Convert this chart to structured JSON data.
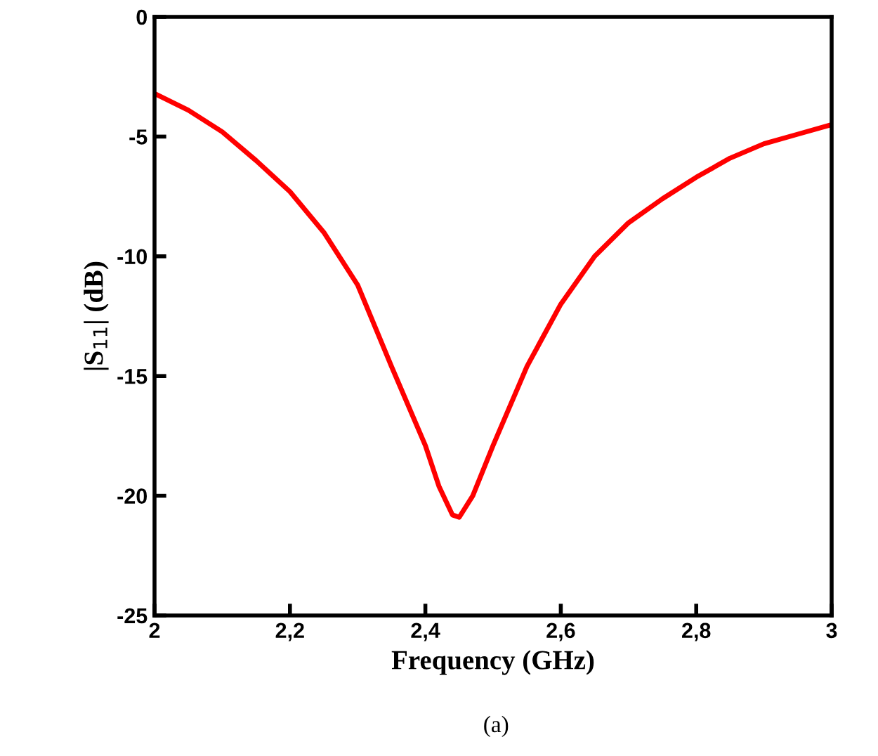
{
  "chart_data": {
    "type": "line",
    "xlabel": "Frequency (GHz)",
    "ylabel": "|S$_{11}$| (dB)",
    "annotations": [
      "(a)"
    ],
    "x": [
      2.0,
      2.05,
      2.1,
      2.15,
      2.2,
      2.25,
      2.3,
      2.35,
      2.4,
      2.42,
      2.44,
      2.45,
      2.47,
      2.5,
      2.55,
      2.6,
      2.65,
      2.7,
      2.75,
      2.8,
      2.85,
      2.9,
      2.95,
      3.0
    ],
    "series": [
      {
        "color": "#ff0000",
        "values": [
          -3.2,
          -3.9,
          -4.8,
          -6.0,
          -7.3,
          -9.0,
          -11.2,
          -14.6,
          -17.9,
          -19.6,
          -20.8,
          -20.9,
          -20.0,
          -17.9,
          -14.6,
          -12.0,
          -10.0,
          -8.6,
          -7.6,
          -6.7,
          -5.9,
          -5.3,
          -4.9,
          -4.5
        ]
      }
    ],
    "xlim": [
      2,
      3
    ],
    "ylim": [
      -25,
      0
    ],
    "xticks": [
      {
        "value": 2,
        "label": "2"
      },
      {
        "value": 2.2,
        "label": "2,2"
      },
      {
        "value": 2.4,
        "label": "2,4"
      },
      {
        "value": 2.6,
        "label": "2,6"
      },
      {
        "value": 2.8,
        "label": "2,8"
      },
      {
        "value": 3,
        "label": "3"
      }
    ],
    "yticks": [
      -25,
      -20,
      -15,
      -10,
      -5,
      0
    ],
    "grid": false,
    "legend": false,
    "line_style": "solid",
    "marker": "none"
  }
}
